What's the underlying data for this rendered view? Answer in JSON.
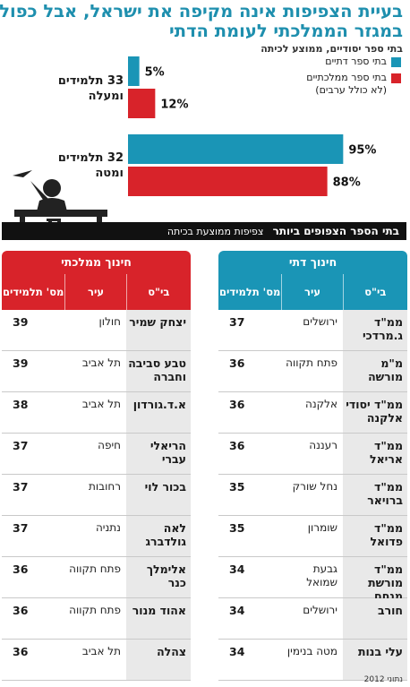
{
  "header": {
    "title_line1": "בעיית הצפיפות אינה מקיפה את ישראל, אבל כפולה",
    "title_line2": "במגזר הממלכתי לעומת הדתי",
    "subtitle": "בתי ספר יסודיים, ממוצע לכיתה"
  },
  "colors": {
    "dati": "#1a95b6",
    "mamlachti": "#d8232a",
    "section": "#111111"
  },
  "chart_data": {
    "type": "bar",
    "orientation": "horizontal",
    "categories": [
      "33 תלמידים ומעלה",
      "32 תלמידים ומטה"
    ],
    "category_lines": [
      [
        "33 תלמידים",
        "ומעלה"
      ],
      [
        "32 תלמידים",
        "ומטה"
      ]
    ],
    "series": [
      {
        "name": "בתי ספר דתיים",
        "values": [
          5,
          95
        ],
        "color": "#1a95b6"
      },
      {
        "name": "בתי ספר ממלכתיים (לא כולל ערבים)",
        "values": [
          12,
          88
        ],
        "color": "#d8232a"
      }
    ],
    "value_suffix": "%",
    "xlim": [
      0,
      100
    ],
    "legend": {
      "placement": "top-right",
      "items": [
        {
          "lines": [
            "בתי ספר דתיים"
          ],
          "color": "#1a95b6"
        },
        {
          "lines": [
            "בתי ספר ממלכתיים",
            "(לא כולל ערבים)"
          ],
          "color": "#d8232a"
        }
      ]
    }
  },
  "section_title": {
    "bold": "בתי הספר הצפופים ביותר",
    "rest": "צפיפות ממוצעת בכיתה"
  },
  "tables": {
    "dati": {
      "title": "חינוך דתי",
      "headers": [
        "בי\"ס",
        "עיר",
        "מס' תלמידים"
      ],
      "rows": [
        [
          "ממ\"ד ג.מרדכי",
          "ירושלים",
          "37"
        ],
        [
          "מ\"מ מורשה",
          "פתח תקווה",
          "36"
        ],
        [
          "ממ\"ד יסודי אלקנה",
          "אלקנה",
          "36"
        ],
        [
          "ממ\"ד אריאל",
          "רעננה",
          "36"
        ],
        [
          "ממ\"ד ברויאר",
          "נחל שורק",
          "35"
        ],
        [
          "ממ\"ד פדואל",
          "שומרון",
          "35"
        ],
        [
          "ממ\"ד מורשת מנחם",
          "גבעת שמואל",
          "34"
        ],
        [
          "חורב",
          "ירושלים",
          "34"
        ],
        [
          "עלי בנות",
          "מטה בנימין",
          "34"
        ]
      ]
    },
    "mamlachti": {
      "title": "חינוך ממלכתי",
      "headers": [
        "בי\"ס",
        "עיר",
        "מס' תלמידים"
      ],
      "rows": [
        [
          "יצחק שמיר",
          "חולון",
          "39"
        ],
        [
          "טבע סביבה וחברה",
          "תל אביב",
          "39"
        ],
        [
          "א.ד.גורדון",
          "תל אביב",
          "38"
        ],
        [
          "הריאלי עברי",
          "חיפה",
          "37"
        ],
        [
          "בכור לוי",
          "רחובות",
          "37"
        ],
        [
          "לאה גולדברג",
          "נתניה",
          "37"
        ],
        [
          "אלימלך כנר",
          "פתח תקווה",
          "36"
        ],
        [
          "אהוד מנור",
          "פתח תקווה",
          "36"
        ],
        [
          "צהלה",
          "תל אביב",
          "36"
        ]
      ]
    }
  },
  "source": "נתוני 2012"
}
